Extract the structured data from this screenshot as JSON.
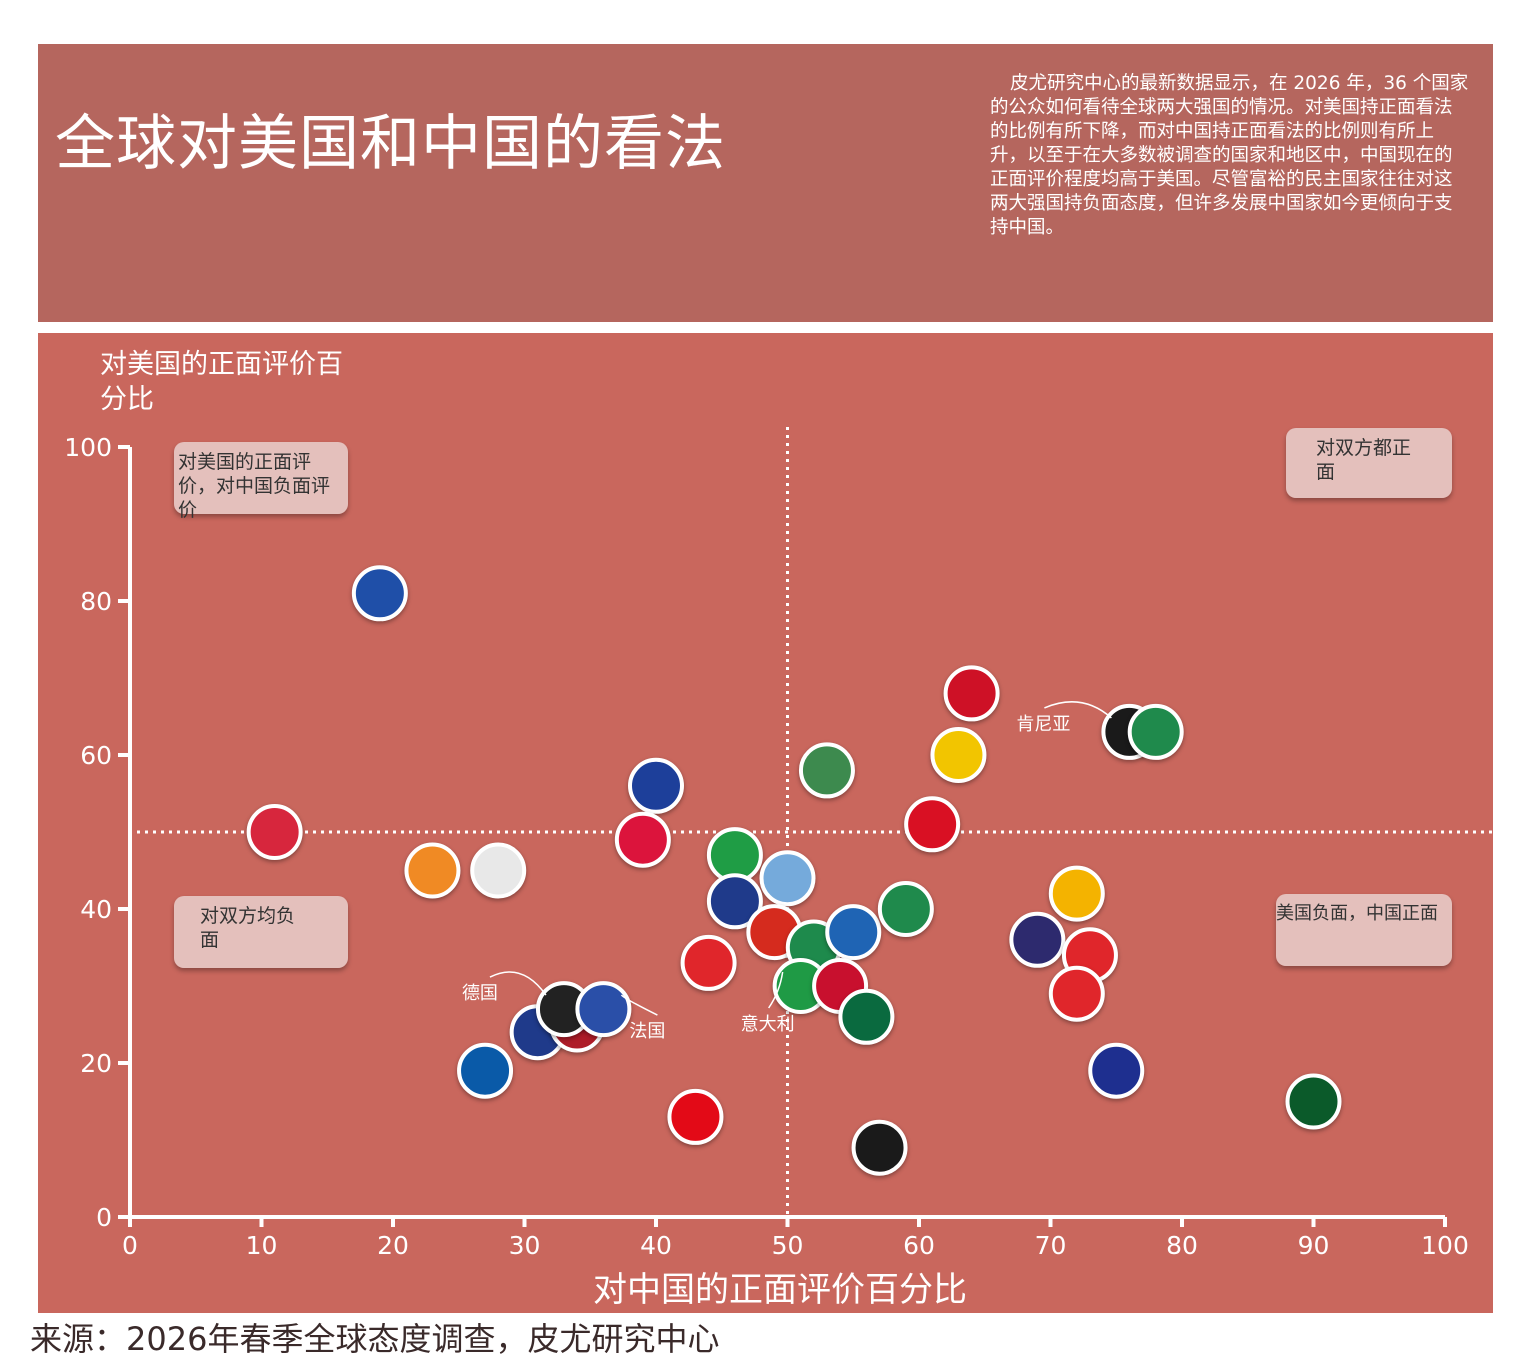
{
  "chart_data": {
    "type": "scatter",
    "title": "全球对美国和中国的看法",
    "subtitle": "皮尤研究中心的最新数据显示，在 2026 年，36 个国家的公众如何看待全球两大强国的情况。对美国持正面看法的比例有所下降，而对中国持正面看法的比例则有所上升，以至于在大多数被调查的国家和地区中，中国现在的正面评价程度均高于美国。尽管富裕的民主国家往往对这两大强国持负面态度，但许多发展中国家如今更倾向于支持中国。",
    "xlabel": "对中国的正面评价百分比",
    "ylabel": "对美国的正面评价百分比",
    "xlim": [
      0,
      100
    ],
    "ylim": [
      0,
      100
    ],
    "xticks": [
      0,
      10,
      20,
      30,
      40,
      50,
      60,
      70,
      80,
      90,
      100
    ],
    "yticks": [
      0,
      20,
      40,
      60,
      80,
      100
    ],
    "reference_lines": {
      "x": 50,
      "y": 50
    },
    "quadrant_labels": {
      "top_left": "对美国的正面评价，对中国负面评价",
      "top_right": "对双方都正面",
      "bottom_left": "对双方均负面",
      "bottom_right": "美国负面，中国正面"
    },
    "source": "来源：2026年春季全球态度调查，皮尤研究中心",
    "x": [
      19,
      11,
      23,
      28,
      40,
      39,
      46,
      50,
      46,
      49,
      44,
      52,
      51,
      55,
      54,
      56,
      59,
      53,
      61,
      63,
      64,
      76,
      78,
      72,
      69,
      73,
      72,
      75,
      90,
      57,
      43,
      27,
      31,
      34,
      33,
      36
    ],
    "values": [
      81,
      50,
      45,
      45,
      56,
      49,
      47,
      44,
      41,
      37,
      33,
      35,
      30,
      37,
      30,
      26,
      40,
      58,
      51,
      60,
      68,
      63,
      63,
      42,
      36,
      34,
      29,
      19,
      15,
      9,
      13,
      19,
      24,
      25,
      27,
      27
    ],
    "point_labels": [
      null,
      null,
      null,
      null,
      null,
      null,
      null,
      null,
      null,
      null,
      null,
      null,
      "意大利",
      null,
      null,
      null,
      null,
      null,
      null,
      null,
      null,
      "肯尼亚",
      null,
      null,
      null,
      null,
      null,
      null,
      null,
      null,
      null,
      null,
      null,
      null,
      "德国",
      "法国"
    ],
    "point_colors": [
      "#1f4fa8",
      "#d7263d",
      "#f08a24",
      "#e8e8e8",
      "#1d3f9a",
      "#dc143c",
      "#1f9d45",
      "#75aadb",
      "#1f3a8a",
      "#d52b1e",
      "#e0262b",
      "#1e8a4c",
      "#1f9a45",
      "#1f64b4",
      "#c8102e",
      "#0a6a3f",
      "#1f8a4c",
      "#3d8a4e",
      "#d91023",
      "#f2c500",
      "#ce1126",
      "#1a1a1a",
      "#1f8a4c",
      "#f4b300",
      "#2d2a6e",
      "#e0262b",
      "#e0262b",
      "#1e2f8f",
      "#0b5a2a",
      "#1a1a1a",
      "#e30a17",
      "#0a5aa8",
      "#1f3a8a",
      "#ae1c28",
      "#222222",
      "#2a4fa8"
    ]
  }
}
